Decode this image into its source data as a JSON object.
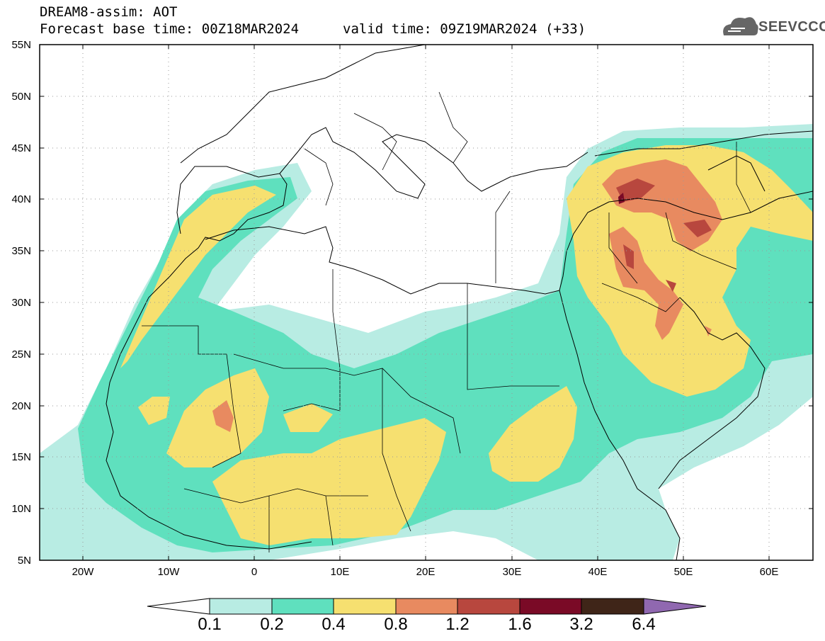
{
  "header": {
    "line1": "DREAM8-assim: AOT",
    "line2": "Forecast base time: 00Z18MAR2024",
    "valid": "valid time: 09Z19MAR2024 (+33)"
  },
  "logo": {
    "text": "SEEVCCC",
    "icon": "cloud-icon"
  },
  "map": {
    "lat_labels": [
      "55N",
      "50N",
      "45N",
      "40N",
      "35N",
      "30N",
      "25N",
      "20N",
      "15N",
      "10N",
      "5N"
    ],
    "lon_labels": [
      "20W",
      "10W",
      "0",
      "10E",
      "20E",
      "30E",
      "40E",
      "50E",
      "60E"
    ],
    "background": "#ffffff",
    "grid": "dotted"
  },
  "colorbar": {
    "labels": [
      "0.1",
      "0.2",
      "0.4",
      "0.8",
      "1.2",
      "1.6",
      "3.2",
      "6.4"
    ],
    "colors": [
      "#b8ece3",
      "#5fe0be",
      "#f6e070",
      "#e88a60",
      "#b8473e",
      "#7a0a26",
      "#3f2518",
      "#9068b0"
    ],
    "under_color": "#ffffff"
  }
}
